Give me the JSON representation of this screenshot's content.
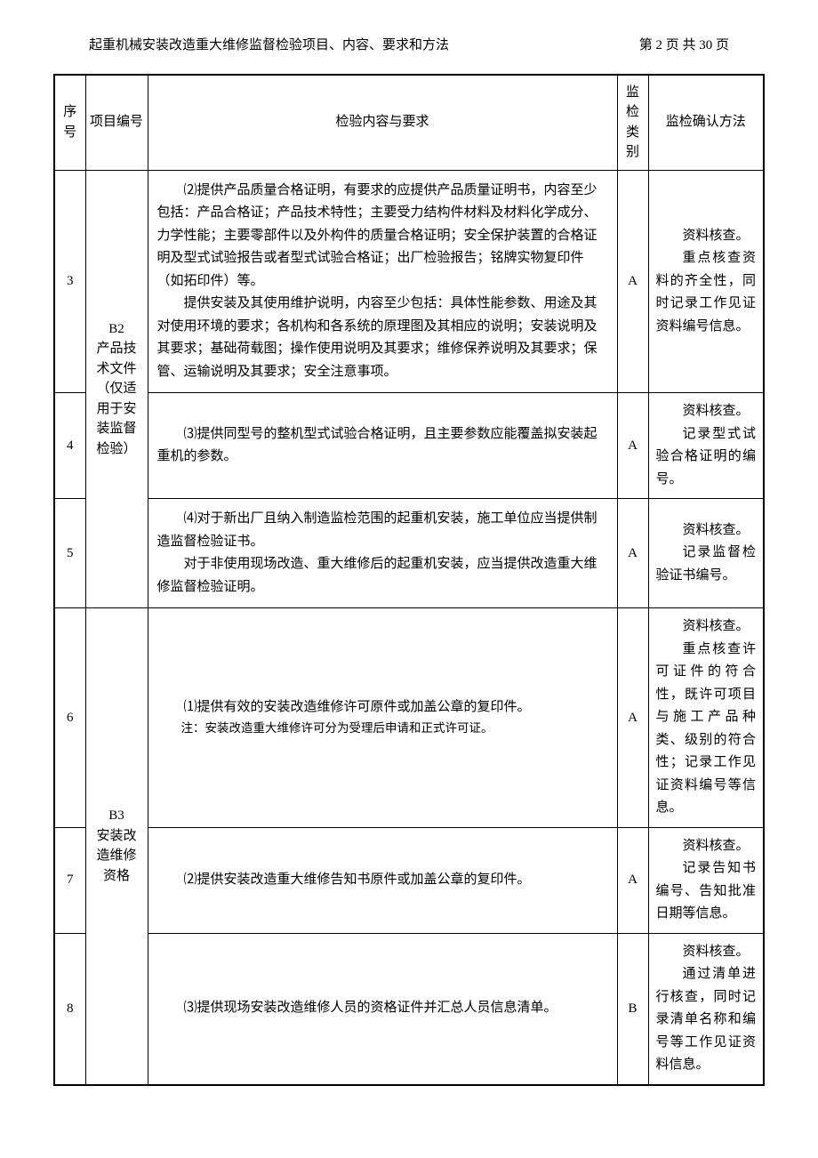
{
  "header": {
    "title": "起重机械安装改造重大维修监督检验项目、内容、要求和方法",
    "page_info": "第 2 页 共 30 页"
  },
  "table": {
    "columns": {
      "seq": "序号",
      "item": "项目编号",
      "content": "检验内容与要求",
      "category": "监检类别",
      "method": "监检确认方法"
    },
    "rows": [
      {
        "seq": "3",
        "item_code": "B2",
        "item_label": "产品技术文件（仅适用于安装监督检验）",
        "content_p1": "⑵提供产品质量合格证明，有要求的应提供产品质量证明书，内容至少包括：产品合格证；产品技术特性；主要受力结构件材料及材料化学成分、力学性能；主要零部件以及外构件的质量合格证明；安全保护装置的合格证明及型式试验报告或者型式试验合格证；出厂检验报告；铭牌实物复印件（如拓印件）等。",
        "content_p2": "提供安装及其使用维护说明，内容至少包括：具体性能参数、用途及其对使用环境的要求；各机构和各系统的原理图及其相应的说明；安装说明及其要求；基础荷载图；操作使用说明及其要求；维修保养说明及其要求；保管、运输说明及其要求；安全注意事项。",
        "category": "A",
        "method_p1": "资料核查。",
        "method_p2": "重点核查资料的齐全性，同时记录工作见证资料编号信息。"
      },
      {
        "seq": "4",
        "content_p1": "⑶提供同型号的整机型式试验合格证明，且主要参数应能覆盖拟安装起重机的参数。",
        "category": "A",
        "method_p1": "资料核查。",
        "method_p2": "记录型式试验合格证明的编号。"
      },
      {
        "seq": "5",
        "content_p1": "⑷对于新出厂且纳入制造监检范围的起重机安装，施工单位应当提供制造监督检验证书。",
        "content_p2": "对于非使用现场改造、重大维修后的起重机安装，应当提供改造重大维修监督检验证明。",
        "category": "A",
        "method_p1": "资料核查。",
        "method_p2": "记录监督检验证书编号。"
      },
      {
        "seq": "6",
        "item_code": "B3",
        "item_label": "安装改造维修资格",
        "content_p1": "⑴提供有效的安装改造维修许可原件或加盖公章的复印件。",
        "content_note": "注：安装改造重大维修许可分为受理后申请和正式许可证。",
        "category": "A",
        "method_p1": "资料核查。",
        "method_p2": "重点核查许可证件的符合性，既许可项目与施工产品种类、级别的符合性；记录工作见证资料编号等信息。"
      },
      {
        "seq": "7",
        "content_p1": "⑵提供安装改造重大维修告知书原件或加盖公章的复印件。",
        "category": "A",
        "method_p1": "资料核查。",
        "method_p2": "记录告知书编号、告知批准日期等信息。"
      },
      {
        "seq": "8",
        "content_p1": "⑶提供现场安装改造维修人员的资格证件并汇总人员信息清单。",
        "category": "B",
        "method_p1": "资料核查。",
        "method_p2": "通过清单进行核查，同时记录清单名称和编号等工作见证资料信息。"
      }
    ]
  }
}
